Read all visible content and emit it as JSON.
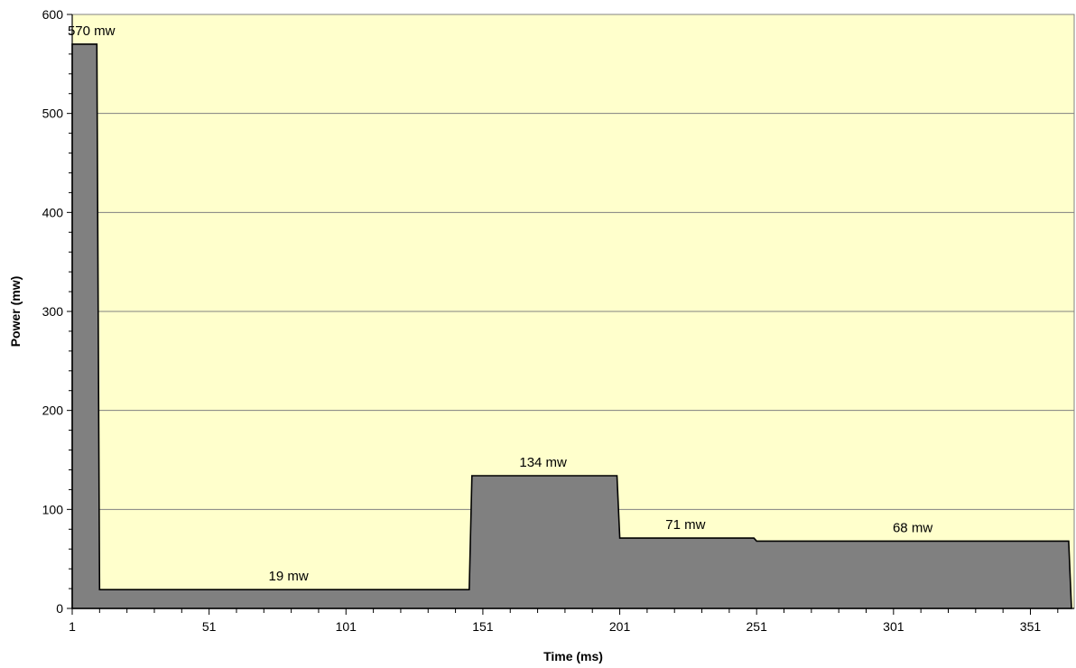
{
  "chart_data": {
    "type": "area",
    "title": "",
    "xlabel": "Time (ms)",
    "ylabel": "Power (mw)",
    "xlim": [
      1,
      367
    ],
    "ylim": [
      0,
      600
    ],
    "x_tick_labels": [
      "1",
      "51",
      "101",
      "151",
      "201",
      "251",
      "301",
      "351"
    ],
    "x_tick_values": [
      1,
      51,
      101,
      151,
      201,
      251,
      301,
      351
    ],
    "y_tick_labels": [
      "0",
      "100",
      "200",
      "300",
      "400",
      "500",
      "600"
    ],
    "y_tick_values": [
      0,
      100,
      200,
      300,
      400,
      500,
      600
    ],
    "grid": true,
    "legend": "none",
    "series": [
      {
        "x": [
          1,
          1,
          10,
          11,
          146,
          147,
          200,
          201,
          250,
          251,
          365,
          366
        ],
        "y": [
          0,
          570,
          570,
          19,
          19,
          134,
          134,
          71,
          71,
          68,
          68,
          0
        ]
      }
    ],
    "annotations": [
      {
        "text": "570 mw",
        "x": 8,
        "y": 570
      },
      {
        "text": "19 mw",
        "x": 80,
        "y": 19
      },
      {
        "text": "134 mw",
        "x": 173,
        "y": 134
      },
      {
        "text": "71 mw",
        "x": 225,
        "y": 71
      },
      {
        "text": "68 mw",
        "x": 308,
        "y": 68
      }
    ],
    "colors": {
      "plot_background": "#FFFFCC",
      "area_fill": "#808080",
      "area_stroke": "#000000",
      "gridline": "#808080",
      "axis": "#000000"
    }
  }
}
